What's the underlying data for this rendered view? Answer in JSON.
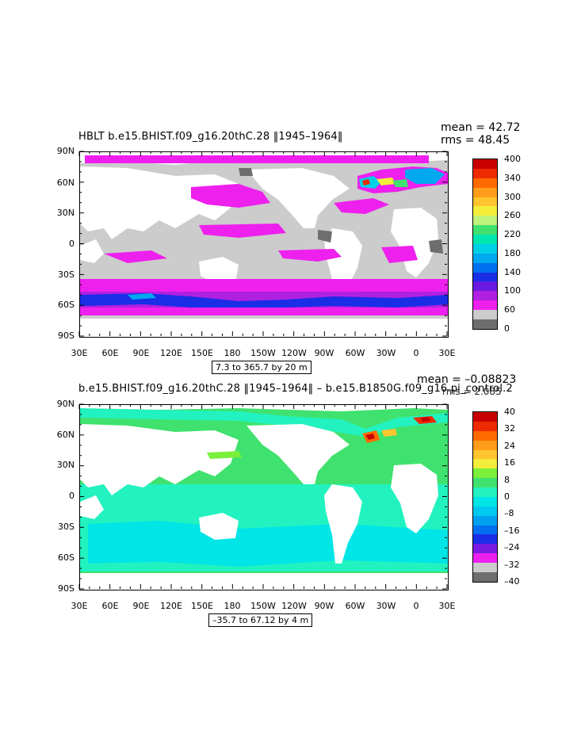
{
  "panels": [
    {
      "title": "HBLT b.e15.BHIST.f09_g16.20thC.28 ‖1945–1964‖",
      "mean_line": "mean = 42.72",
      "rms_line": "rms = 48.45",
      "range_text": "7.3 to 365.7 by 20 m",
      "colorbar": {
        "labels": [
          "400",
          "340",
          "300",
          "260",
          "220",
          "180",
          "140",
          "100",
          "60",
          "0"
        ],
        "colors": [
          "#c80000",
          "#ee2a00",
          "#ff6a00",
          "#ff9d1a",
          "#ffc52e",
          "#f4ee3a",
          "#bff27a",
          "#3fe26e",
          "#00e6b0",
          "#00d0e6",
          "#00a8f0",
          "#0070f0",
          "#1a2ee6",
          "#6a1ae0",
          "#b020e0",
          "#ee20ee",
          "#cccccc",
          "#6e6e6e"
        ]
      }
    },
    {
      "title": "b.e15.BHIST.f09_g16.20thC.28 ‖1945–1964‖ – b.e15.B1850G.f09_g16.pi_control.2",
      "mean_line": "mean = –0.08823",
      "rms_line": "rms = 2.085",
      "range_text": "–35.7 to 67.12 by 4 m",
      "colorbar": {
        "labels": [
          "40",
          "32",
          "24",
          "16",
          "8",
          "0",
          "–8",
          "–16",
          "–24",
          "–32",
          "–40"
        ],
        "colors": [
          "#c80000",
          "#ee2a00",
          "#ff6a00",
          "#ff9d1a",
          "#ffc52e",
          "#f4ee3a",
          "#7af03a",
          "#3fe26e",
          "#22f2c0",
          "#00e6e6",
          "#00c8f0",
          "#00a0f0",
          "#0070f0",
          "#1a2ee6",
          "#7a1ae0",
          "#ee20ee",
          "#cccccc",
          "#6e6e6e"
        ]
      }
    }
  ],
  "axes": {
    "y_labels": [
      "90N",
      "60N",
      "30N",
      "0",
      "30S",
      "60S",
      "90S"
    ],
    "x_labels": [
      "30E",
      "60E",
      "90E",
      "120E",
      "150E",
      "180",
      "150W",
      "120W",
      "90W",
      "60W",
      "30W",
      "0",
      "30E"
    ]
  }
}
